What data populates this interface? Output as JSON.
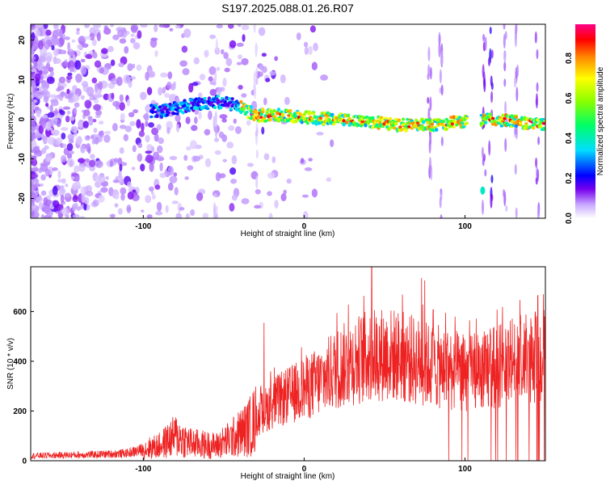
{
  "title": "S197.2025.088.01.26.R07",
  "spectrogram": {
    "type": "heatmap",
    "xlabel": "Height of straight line (km)",
    "ylabel": "Frequency (Hz)",
    "xlim": [
      -170,
      150
    ],
    "ylim": [
      -25,
      24
    ],
    "xticks": [
      -100,
      0,
      100
    ],
    "yticks": [
      -20,
      -10,
      0,
      10,
      20
    ],
    "colorbar": {
      "label": "Normalized spectral amplitude",
      "range": [
        0,
        0.97
      ],
      "ticks": [
        0.0,
        0.2,
        0.4,
        0.6,
        0.8
      ],
      "colormap": [
        "#ffffff",
        "#c8a8ff",
        "#7700ee",
        "#0000ff",
        "#00ddff",
        "#00ff66",
        "#88ff00",
        "#ffff00",
        "#ff8800",
        "#ff0000",
        "#ff0088"
      ]
    },
    "ridge": [
      {
        "x": -90,
        "f": 2
      },
      {
        "x": -70,
        "f": 3.5
      },
      {
        "x": -50,
        "f": 4.5
      },
      {
        "x": -40,
        "f": 3
      },
      {
        "x": -30,
        "f": 1
      },
      {
        "x": -10,
        "f": 1
      },
      {
        "x": 0,
        "f": 0.5
      },
      {
        "x": 20,
        "f": 0
      },
      {
        "x": 40,
        "f": -0.5
      },
      {
        "x": 60,
        "f": -1.5
      },
      {
        "x": 80,
        "f": -1.5
      },
      {
        "x": 100,
        "f": -0.5
      },
      {
        "x": 108,
        "f": 0
      },
      {
        "x": 130,
        "f": -0.5
      },
      {
        "x": 150,
        "f": -1.5
      }
    ]
  },
  "snr": {
    "type": "line",
    "xlabel": "Height of straight line (km)",
    "ylabel": "SNR (10 * v/v)",
    "xlim": [
      -170,
      150
    ],
    "ylim": [
      0,
      780
    ],
    "xticks": [
      -100,
      0,
      100
    ],
    "yticks": [
      0,
      200,
      400,
      600
    ],
    "color": "#ee2222",
    "series": [
      {
        "values": [
          {
            "x": -170,
            "y": 20
          },
          {
            "x": -130,
            "y": 25
          },
          {
            "x": -110,
            "y": 30
          },
          {
            "x": -90,
            "y": 60
          },
          {
            "x": -80,
            "y": 100
          },
          {
            "x": -70,
            "y": 70
          },
          {
            "x": -55,
            "y": 60
          },
          {
            "x": -45,
            "y": 90
          },
          {
            "x": -35,
            "y": 130
          },
          {
            "x": -28,
            "y": 180
          },
          {
            "x": -20,
            "y": 230
          },
          {
            "x": -10,
            "y": 260
          },
          {
            "x": 0,
            "y": 290
          },
          {
            "x": 10,
            "y": 320
          },
          {
            "x": 20,
            "y": 370
          },
          {
            "x": 30,
            "y": 400
          },
          {
            "x": 40,
            "y": 420
          },
          {
            "x": 50,
            "y": 430
          },
          {
            "x": 60,
            "y": 420
          },
          {
            "x": 70,
            "y": 400
          },
          {
            "x": 80,
            "y": 380
          },
          {
            "x": 90,
            "y": 370
          },
          {
            "x": 100,
            "y": 350
          },
          {
            "x": 110,
            "y": 360
          },
          {
            "x": 120,
            "y": 380
          },
          {
            "x": 130,
            "y": 400
          },
          {
            "x": 140,
            "y": 410
          },
          {
            "x": 150,
            "y": 420
          }
        ]
      }
    ],
    "notable_peaks": [
      {
        "x": -25,
        "y": 555
      },
      {
        "x": 42,
        "y": 780
      },
      {
        "x": 73,
        "y": 735
      },
      {
        "x": 75,
        "y": 725
      }
    ]
  }
}
